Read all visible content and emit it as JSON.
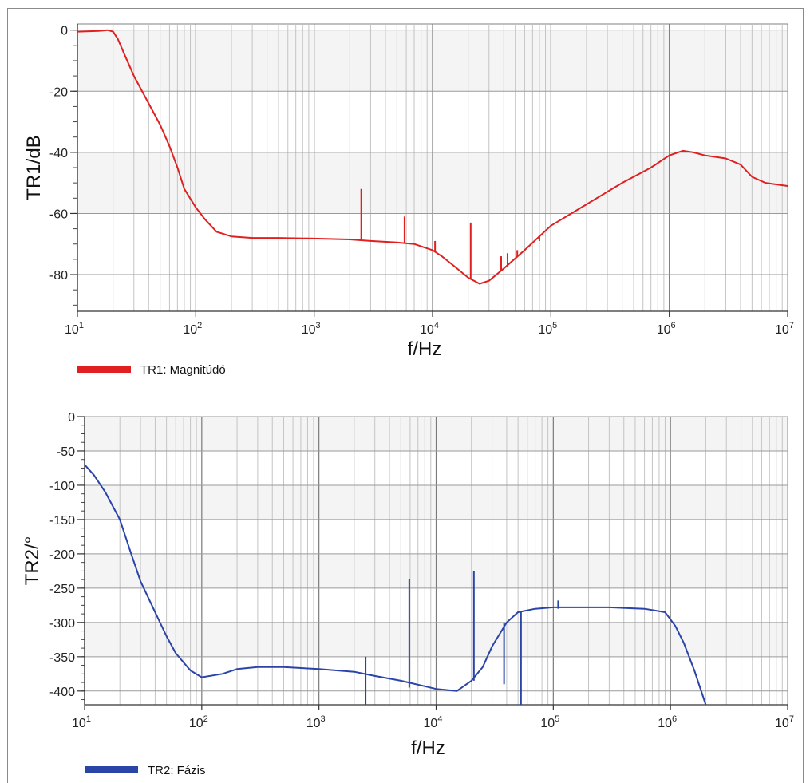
{
  "chart_data": [
    {
      "type": "line",
      "ylabel": "TR1/dB",
      "xlabel": "f/Hz",
      "xscale": "log",
      "xlim": [
        10,
        10000000
      ],
      "ylim": [
        -92,
        2
      ],
      "y_ticks": [
        0,
        -20,
        -40,
        -60,
        -80
      ],
      "x_ticks": [
        10,
        100,
        1000,
        10000,
        100000,
        1000000,
        10000000
      ],
      "x_tick_labels": [
        [
          "10",
          "1"
        ],
        [
          "10",
          "2"
        ],
        [
          "10",
          "3"
        ],
        [
          "10",
          "4"
        ],
        [
          "10",
          "5"
        ],
        [
          "10",
          "6"
        ],
        [
          "10",
          "7"
        ]
      ],
      "grid": true,
      "legend_position": "bottom-left",
      "series": [
        {
          "name": "TR1: Magnitúdó",
          "color": "#e02020",
          "points": [
            [
              10,
              -0.5
            ],
            [
              15,
              -0.3
            ],
            [
              18,
              0
            ],
            [
              20,
              -0.5
            ],
            [
              22,
              -3
            ],
            [
              25,
              -8
            ],
            [
              30,
              -15
            ],
            [
              40,
              -24
            ],
            [
              50,
              -31
            ],
            [
              60,
              -38
            ],
            [
              70,
              -45
            ],
            [
              80,
              -52
            ],
            [
              100,
              -58
            ],
            [
              120,
              -62
            ],
            [
              150,
              -66
            ],
            [
              200,
              -67.5
            ],
            [
              300,
              -68
            ],
            [
              500,
              -68
            ],
            [
              1000,
              -68.2
            ],
            [
              2000,
              -68.5
            ],
            [
              3000,
              -69
            ],
            [
              5000,
              -69.5
            ],
            [
              7000,
              -70
            ],
            [
              10000,
              -72
            ],
            [
              12000,
              -74
            ],
            [
              15000,
              -77
            ],
            [
              20000,
              -81
            ],
            [
              25000,
              -83
            ],
            [
              30000,
              -82
            ],
            [
              40000,
              -78
            ],
            [
              60000,
              -72
            ],
            [
              100000,
              -64
            ],
            [
              200000,
              -57
            ],
            [
              400000,
              -50
            ],
            [
              700000,
              -45
            ],
            [
              1000000,
              -41
            ],
            [
              1300000,
              -39.5
            ],
            [
              1600000,
              -40
            ],
            [
              2000000,
              -41
            ],
            [
              3000000,
              -42
            ],
            [
              4000000,
              -44
            ],
            [
              5000000,
              -48
            ],
            [
              6500000,
              -50
            ],
            [
              10000000,
              -51
            ]
          ]
        }
      ],
      "spikes": [
        [
          2500,
          -52
        ],
        [
          5800,
          -61
        ],
        [
          10500,
          -69
        ],
        [
          21000,
          -63
        ],
        [
          38000,
          -74
        ],
        [
          43000,
          -73
        ],
        [
          52000,
          -72
        ],
        [
          80000,
          -69
        ]
      ]
    },
    {
      "type": "line",
      "ylabel": "TR2/°",
      "xlabel": "f/Hz",
      "xscale": "log",
      "xlim": [
        10,
        10000000
      ],
      "ylim": [
        -420,
        0
      ],
      "y_ticks": [
        0,
        -50,
        -100,
        -150,
        -200,
        -250,
        -300,
        -350,
        -400
      ],
      "x_ticks": [
        10,
        100,
        1000,
        10000,
        100000,
        1000000,
        10000000
      ],
      "x_tick_labels": [
        [
          "10",
          "1"
        ],
        [
          "10",
          "2"
        ],
        [
          "10",
          "3"
        ],
        [
          "10",
          "4"
        ],
        [
          "10",
          "5"
        ],
        [
          "10",
          "6"
        ],
        [
          "10",
          "7"
        ]
      ],
      "grid": true,
      "legend_position": "bottom-left",
      "series": [
        {
          "name": "TR2: Fázis",
          "color": "#2a44a8",
          "points": [
            [
              10,
              -70
            ],
            [
              12,
              -85
            ],
            [
              15,
              -110
            ],
            [
              20,
              -150
            ],
            [
              25,
              -200
            ],
            [
              30,
              -240
            ],
            [
              40,
              -285
            ],
            [
              50,
              -320
            ],
            [
              60,
              -345
            ],
            [
              80,
              -370
            ],
            [
              100,
              -380
            ],
            [
              150,
              -375
            ],
            [
              200,
              -368
            ],
            [
              300,
              -365
            ],
            [
              500,
              -365
            ],
            [
              1000,
              -368
            ],
            [
              2000,
              -372
            ],
            [
              3000,
              -378
            ],
            [
              5000,
              -385
            ],
            [
              8000,
              -393
            ],
            [
              10000,
              -397
            ],
            [
              15000,
              -400
            ],
            [
              20000,
              -385
            ],
            [
              25000,
              -365
            ],
            [
              30000,
              -335
            ],
            [
              40000,
              -300
            ],
            [
              50000,
              -285
            ],
            [
              70000,
              -280
            ],
            [
              100000,
              -278
            ],
            [
              300000,
              -278
            ],
            [
              600000,
              -280
            ],
            [
              900000,
              -285
            ],
            [
              1100000,
              -305
            ],
            [
              1300000,
              -330
            ],
            [
              1600000,
              -370
            ],
            [
              2000000,
              -420
            ]
          ]
        }
      ],
      "spikes": [
        [
          2500,
          -350,
          -420
        ],
        [
          5900,
          -237,
          -395
        ],
        [
          21000,
          -225,
          -385
        ],
        [
          38000,
          -300,
          -390
        ],
        [
          53000,
          -285,
          -420
        ],
        [
          110000,
          -268,
          -280
        ]
      ]
    }
  ]
}
